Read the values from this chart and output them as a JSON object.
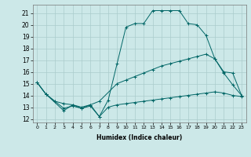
{
  "title": "",
  "xlabel": "Humidex (Indice chaleur)",
  "background_color": "#cce8e8",
  "grid_color": "#aacccc",
  "line_color": "#006666",
  "xlim": [
    -0.5,
    23.5
  ],
  "ylim": [
    11.7,
    21.7
  ],
  "yticks": [
    12,
    13,
    14,
    15,
    16,
    17,
    18,
    19,
    20,
    21
  ],
  "xticks": [
    0,
    1,
    2,
    3,
    4,
    5,
    6,
    7,
    8,
    9,
    10,
    11,
    12,
    13,
    14,
    15,
    16,
    17,
    18,
    19,
    20,
    21,
    22,
    23
  ],
  "line1_x": [
    0,
    1,
    3,
    4,
    5,
    6,
    7,
    8,
    9,
    10,
    11,
    12,
    13,
    14,
    15,
    16,
    17,
    18,
    19,
    20,
    21,
    22,
    23
  ],
  "line1_y": [
    15.1,
    14.1,
    12.7,
    13.2,
    12.9,
    13.2,
    12.2,
    13.6,
    16.7,
    19.8,
    20.1,
    20.1,
    21.2,
    21.2,
    21.2,
    21.2,
    20.1,
    20.0,
    19.1,
    17.1,
    15.9,
    14.9,
    14.0
  ],
  "line2_x": [
    0,
    1,
    2,
    3,
    4,
    5,
    6,
    7,
    9,
    10,
    11,
    12,
    13,
    14,
    15,
    16,
    17,
    18,
    19,
    20,
    21,
    22,
    23
  ],
  "line2_y": [
    15.1,
    14.1,
    13.5,
    13.3,
    13.2,
    13.0,
    13.2,
    13.5,
    15.0,
    15.3,
    15.6,
    15.9,
    16.2,
    16.5,
    16.7,
    16.9,
    17.1,
    17.3,
    17.5,
    17.1,
    16.0,
    15.9,
    14.0
  ],
  "line3_x": [
    0,
    1,
    2,
    3,
    4,
    5,
    6,
    7,
    8,
    9,
    10,
    11,
    12,
    13,
    14,
    15,
    16,
    17,
    18,
    19,
    20,
    21,
    22,
    23
  ],
  "line3_y": [
    15.1,
    14.1,
    13.5,
    12.9,
    13.1,
    12.9,
    13.1,
    12.2,
    13.0,
    13.2,
    13.3,
    13.4,
    13.5,
    13.6,
    13.7,
    13.8,
    13.9,
    14.0,
    14.1,
    14.2,
    14.3,
    14.2,
    14.0,
    13.9
  ]
}
